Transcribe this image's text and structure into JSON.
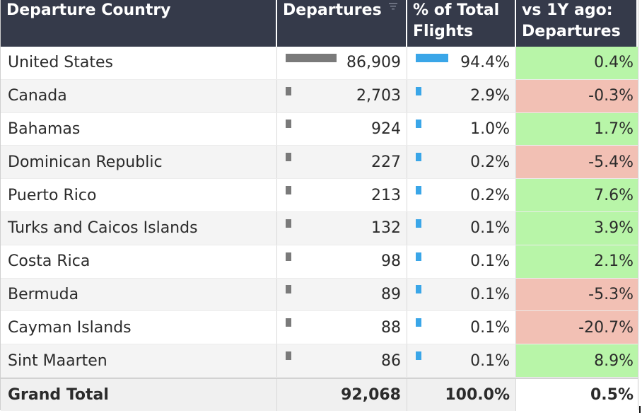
{
  "headers": {
    "country": "Departure Country",
    "departures": "Departures",
    "pct_line1": "% of Total",
    "pct_line2": "Flights",
    "yoy_line1": "vs 1Y ago:",
    "yoy_line2": "Departures"
  },
  "rows": [
    {
      "country": "United States",
      "departures": "86,909",
      "departures_value": 86909,
      "pct": "94.4%",
      "pct_value": 94.4,
      "yoy": "0.4%",
      "yoy_sign": "pos"
    },
    {
      "country": "Canada",
      "departures": "2,703",
      "departures_value": 2703,
      "pct": "2.9%",
      "pct_value": 2.9,
      "yoy": "-0.3%",
      "yoy_sign": "neg"
    },
    {
      "country": "Bahamas",
      "departures": "924",
      "departures_value": 924,
      "pct": "1.0%",
      "pct_value": 1.0,
      "yoy": "1.7%",
      "yoy_sign": "pos"
    },
    {
      "country": "Dominican Republic",
      "departures": "227",
      "departures_value": 227,
      "pct": "0.2%",
      "pct_value": 0.2,
      "yoy": "-5.4%",
      "yoy_sign": "neg"
    },
    {
      "country": "Puerto Rico",
      "departures": "213",
      "departures_value": 213,
      "pct": "0.2%",
      "pct_value": 0.2,
      "yoy": "7.6%",
      "yoy_sign": "pos"
    },
    {
      "country": "Turks and Caicos Islands",
      "departures": "132",
      "departures_value": 132,
      "pct": "0.1%",
      "pct_value": 0.1,
      "yoy": "3.9%",
      "yoy_sign": "pos"
    },
    {
      "country": "Costa Rica",
      "departures": "98",
      "departures_value": 98,
      "pct": "0.1%",
      "pct_value": 0.1,
      "yoy": "2.1%",
      "yoy_sign": "pos"
    },
    {
      "country": "Bermuda",
      "departures": "89",
      "departures_value": 89,
      "pct": "0.1%",
      "pct_value": 0.1,
      "yoy": "-5.3%",
      "yoy_sign": "neg"
    },
    {
      "country": "Cayman Islands",
      "departures": "88",
      "departures_value": 88,
      "pct": "0.1%",
      "pct_value": 0.1,
      "yoy": "-20.7%",
      "yoy_sign": "neg"
    },
    {
      "country": "Sint Maarten",
      "departures": "86",
      "departures_value": 86,
      "pct": "0.1%",
      "pct_value": 0.1,
      "yoy": "8.9%",
      "yoy_sign": "pos"
    }
  ],
  "total": {
    "label": "Grand Total",
    "departures": "92,068",
    "pct": "100.0%",
    "yoy": "0.5%"
  },
  "colors": {
    "header_bg": "#353a4a",
    "departures_bar": "#7a7a7a",
    "pct_bar": "#3aa6e8",
    "positive": "#b8f5a8",
    "negative": "#f2c0b4"
  },
  "icons": {
    "sort": "sort-icon"
  }
}
